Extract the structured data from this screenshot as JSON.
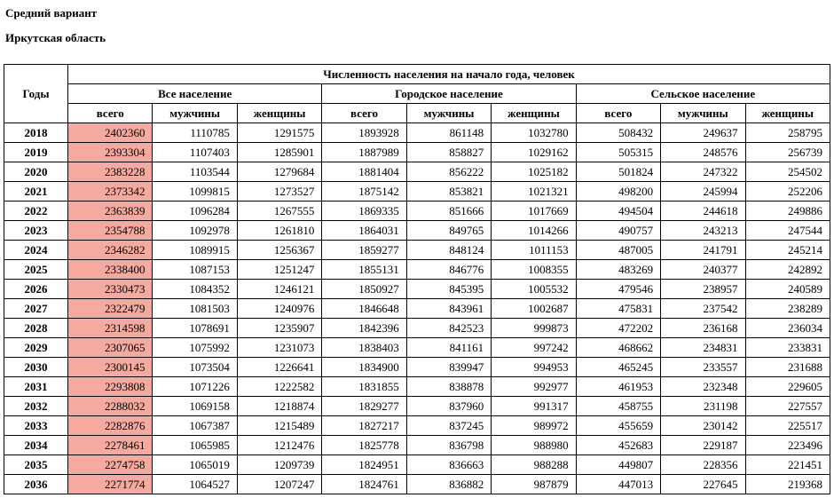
{
  "meta": {
    "variant_label": "Средний вариант",
    "region_label": "Иркутская область"
  },
  "table": {
    "top_header": "Численность населения на начало года, человек",
    "years_header": "Годы",
    "groups": [
      {
        "label": "Все население",
        "sub": [
          "всего",
          "мужчины",
          "женщины"
        ]
      },
      {
        "label": "Городское население",
        "sub": [
          "всего",
          "мужчины",
          "женщины"
        ]
      },
      {
        "label": "Сельское население",
        "sub": [
          "всего",
          "мужчины",
          "женщины"
        ]
      }
    ],
    "highlight_color": "#f4aaa0",
    "rows": [
      {
        "year": "2018",
        "values": [
          "2402360",
          "1110785",
          "1291575",
          "1893928",
          "861148",
          "1032780",
          "508432",
          "249637",
          "258795"
        ]
      },
      {
        "year": "2019",
        "values": [
          "2393304",
          "1107403",
          "1285901",
          "1887989",
          "858827",
          "1029162",
          "505315",
          "248576",
          "256739"
        ]
      },
      {
        "year": "2020",
        "values": [
          "2383228",
          "1103544",
          "1279684",
          "1881404",
          "856222",
          "1025182",
          "501824",
          "247322",
          "254502"
        ]
      },
      {
        "year": "2021",
        "values": [
          "2373342",
          "1099815",
          "1273527",
          "1875142",
          "853821",
          "1021321",
          "498200",
          "245994",
          "252206"
        ]
      },
      {
        "year": "2022",
        "values": [
          "2363839",
          "1096284",
          "1267555",
          "1869335",
          "851666",
          "1017669",
          "494504",
          "244618",
          "249886"
        ]
      },
      {
        "year": "2023",
        "values": [
          "2354788",
          "1092978",
          "1261810",
          "1864031",
          "849765",
          "1014266",
          "490757",
          "243213",
          "247544"
        ]
      },
      {
        "year": "2024",
        "values": [
          "2346282",
          "1089915",
          "1256367",
          "1859277",
          "848124",
          "1011153",
          "487005",
          "241791",
          "245214"
        ]
      },
      {
        "year": "2025",
        "values": [
          "2338400",
          "1087153",
          "1251247",
          "1855131",
          "846776",
          "1008355",
          "483269",
          "240377",
          "242892"
        ]
      },
      {
        "year": "2026",
        "values": [
          "2330473",
          "1084352",
          "1246121",
          "1850927",
          "845395",
          "1005532",
          "479546",
          "238957",
          "240589"
        ]
      },
      {
        "year": "2027",
        "values": [
          "2322479",
          "1081503",
          "1240976",
          "1846648",
          "843961",
          "1002687",
          "475831",
          "237542",
          "238289"
        ]
      },
      {
        "year": "2028",
        "values": [
          "2314598",
          "1078691",
          "1235907",
          "1842396",
          "842523",
          "999873",
          "472202",
          "236168",
          "236034"
        ]
      },
      {
        "year": "2029",
        "values": [
          "2307065",
          "1075992",
          "1231073",
          "1838403",
          "841161",
          "997242",
          "468662",
          "234831",
          "233831"
        ]
      },
      {
        "year": "2030",
        "values": [
          "2300145",
          "1073504",
          "1226641",
          "1834900",
          "839947",
          "994953",
          "465245",
          "233557",
          "231688"
        ]
      },
      {
        "year": "2031",
        "values": [
          "2293808",
          "1071226",
          "1222582",
          "1831855",
          "838878",
          "992977",
          "461953",
          "232348",
          "229605"
        ]
      },
      {
        "year": "2032",
        "values": [
          "2288032",
          "1069158",
          "1218874",
          "1829277",
          "837960",
          "991317",
          "458755",
          "231198",
          "227557"
        ]
      },
      {
        "year": "2033",
        "values": [
          "2282876",
          "1067387",
          "1215489",
          "1827217",
          "837245",
          "989972",
          "455659",
          "230142",
          "225517"
        ]
      },
      {
        "year": "2034",
        "values": [
          "2278461",
          "1065985",
          "1212476",
          "1825778",
          "836798",
          "988980",
          "452683",
          "229187",
          "223496"
        ]
      },
      {
        "year": "2035",
        "values": [
          "2274758",
          "1065019",
          "1209739",
          "1824951",
          "836663",
          "988288",
          "449807",
          "228356",
          "221451"
        ]
      },
      {
        "year": "2036",
        "values": [
          "2271774",
          "1064527",
          "1207247",
          "1824761",
          "836882",
          "987879",
          "447013",
          "227645",
          "219368"
        ]
      }
    ]
  }
}
